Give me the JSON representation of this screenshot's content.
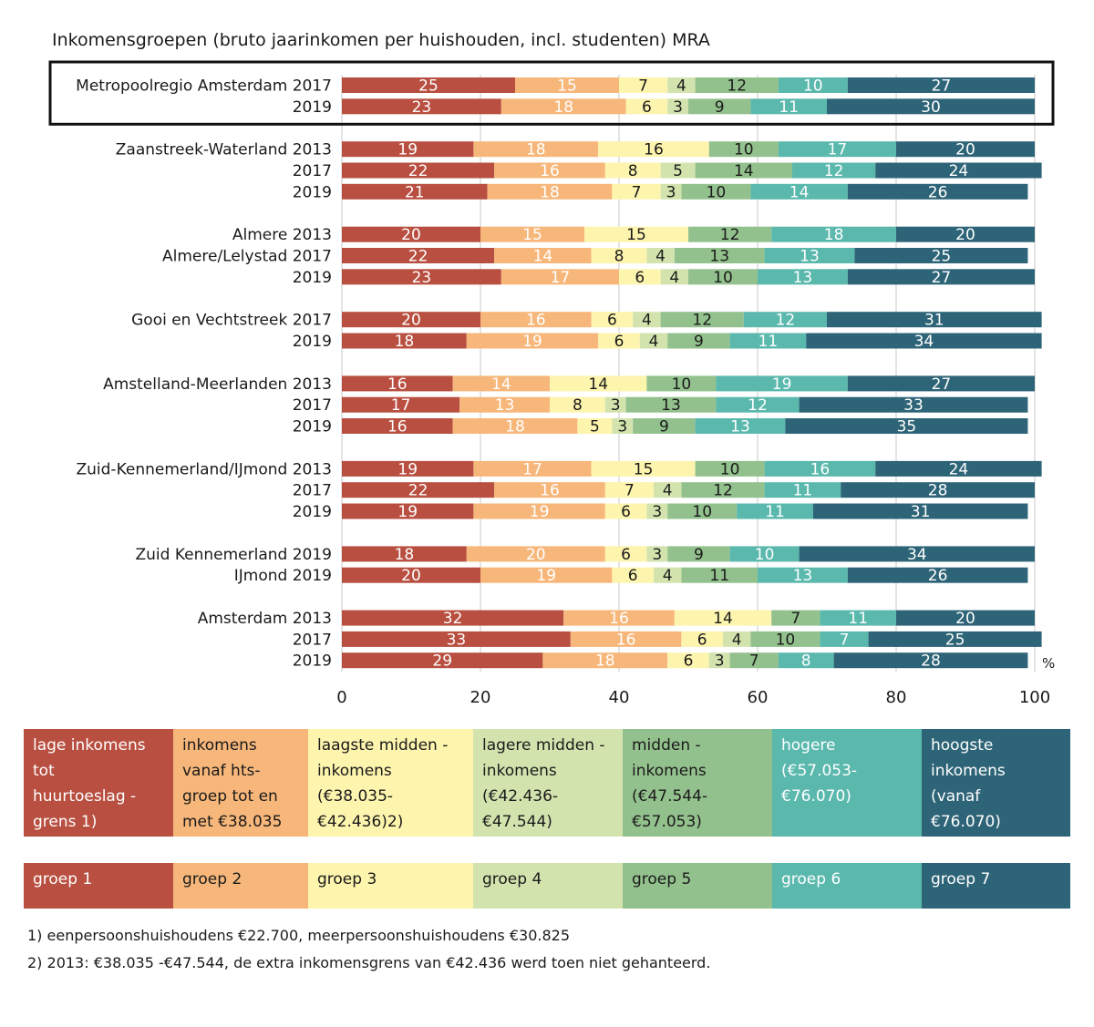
{
  "title": "Inkomensgroepen  (bruto jaarinkomen per huishouden, incl. studenten) MRA",
  "colors": [
    "#b84f40",
    "#f7b77a",
    "#fdf4ae",
    "#d3e3ae",
    "#93c18d",
    "#5ab8ad",
    "#2e6477"
  ],
  "chart_data": {
    "type": "bar",
    "orientation": "horizontal",
    "stacked": true,
    "xlim": [
      0,
      100
    ],
    "x_ticks": [
      "0",
      "20",
      "40",
      "60",
      "80",
      "100"
    ],
    "unit_label": "%",
    "grid": true,
    "highlighted_group": 0,
    "series_names": [
      "groep 1",
      "groep 2",
      "groep 3",
      "groep 4",
      "groep 5",
      "groep 6",
      "groep 7"
    ],
    "groups": [
      {
        "rows": [
          {
            "label": "Metropoolregio Amsterdam 2017",
            "values": [
              25,
              15,
              7,
              4,
              12,
              10,
              27
            ]
          },
          {
            "label": "2019",
            "values": [
              23,
              18,
              6,
              3,
              9,
              11,
              30
            ]
          }
        ]
      },
      {
        "rows": [
          {
            "label": "Zaanstreek-Waterland 2013",
            "values": [
              19,
              18,
              16,
              0,
              10,
              17,
              20
            ]
          },
          {
            "label": "2017",
            "values": [
              22,
              16,
              8,
              5,
              14,
              12,
              24
            ]
          },
          {
            "label": "2019",
            "values": [
              21,
              18,
              7,
              3,
              10,
              14,
              26
            ]
          }
        ]
      },
      {
        "rows": [
          {
            "label": "Almere 2013",
            "values": [
              20,
              15,
              15,
              0,
              12,
              18,
              20
            ]
          },
          {
            "label": "Almere/Lelystad 2017",
            "values": [
              22,
              14,
              8,
              4,
              13,
              13,
              25
            ]
          },
          {
            "label": "2019",
            "values": [
              23,
              17,
              6,
              4,
              10,
              13,
              27
            ]
          }
        ]
      },
      {
        "rows": [
          {
            "label": "Gooi en Vechtstreek 2017",
            "values": [
              20,
              16,
              6,
              4,
              12,
              12,
              31
            ]
          },
          {
            "label": "2019",
            "values": [
              18,
              19,
              6,
              4,
              9,
              11,
              34
            ]
          }
        ]
      },
      {
        "rows": [
          {
            "label": "Amstelland-Meerlanden 2013",
            "values": [
              16,
              14,
              14,
              0,
              10,
              19,
              27
            ]
          },
          {
            "label": "2017",
            "values": [
              17,
              13,
              8,
              3,
              13,
              12,
              33
            ]
          },
          {
            "label": "2019",
            "values": [
              16,
              18,
              5,
              3,
              9,
              13,
              35
            ]
          }
        ]
      },
      {
        "rows": [
          {
            "label": "Zuid-Kennemerland/IJmond 2013",
            "values": [
              19,
              17,
              15,
              0,
              10,
              16,
              24
            ]
          },
          {
            "label": "2017",
            "values": [
              22,
              16,
              7,
              4,
              12,
              11,
              28
            ]
          },
          {
            "label": "2019",
            "values": [
              19,
              19,
              6,
              3,
              10,
              11,
              31
            ]
          }
        ]
      },
      {
        "rows": [
          {
            "label": "Zuid Kennemerland 2019",
            "values": [
              18,
              20,
              6,
              3,
              9,
              10,
              34
            ]
          },
          {
            "label": "IJmond 2019",
            "values": [
              20,
              19,
              6,
              4,
              11,
              13,
              26
            ]
          }
        ]
      },
      {
        "rows": [
          {
            "label": "Amsterdam 2013",
            "values": [
              32,
              16,
              14,
              0,
              7,
              11,
              20
            ]
          },
          {
            "label": "2017",
            "values": [
              33,
              16,
              6,
              4,
              10,
              7,
              25
            ]
          },
          {
            "label": "2019",
            "values": [
              29,
              18,
              6,
              3,
              7,
              8,
              28
            ]
          }
        ]
      }
    ]
  },
  "legend": {
    "descriptions": [
      "lage inkomens\ntot\nhuurtoeslag -\ngrens 1)",
      "inkomens\nvanaf hts-\ngroep tot en\nmet €38.035",
      "laagste midden -\ninkomens\n(€38.035-\n€42.436)2)",
      "lagere midden -\ninkomens\n(€42.436-\n€47.544)",
      "midden -\ninkomens\n(€47.544-\n€57.053)",
      "hogere\n(€57.053-\n€76.070)",
      "hoogste\ninkomens\n(vanaf\n€76.070)"
    ],
    "groups": [
      "groep 1",
      "groep 2",
      "groep 3",
      "groep 4",
      "groep  5",
      "groep 6",
      "groep 7"
    ],
    "text_colors": [
      "#ffffff",
      "#1a1a1a",
      "#1a1a1a",
      "#1a1a1a",
      "#1a1a1a",
      "#ffffff",
      "#ffffff"
    ]
  },
  "notes": [
    "1) eenpersoonshuishoudens €22.700, meerpersoonshuishoudens €30.825",
    "2) 2013: €38.035 -€47.544, de extra inkomensgrens van €42.436 werd toen niet gehanteerd."
  ]
}
